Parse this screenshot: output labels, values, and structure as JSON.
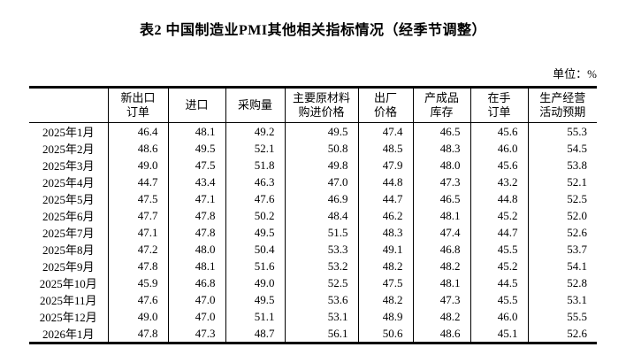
{
  "title": "表2 中国制造业PMI其他相关指标情况（经季节调整）",
  "unit": "单位：%",
  "table": {
    "headers": [
      "",
      "新出口\n订单",
      "进口",
      "采购量",
      "主要原材料\n购进价格",
      "出厂\n价格",
      "产成品\n库存",
      "在手\n订单",
      "生产经营\n活动预期"
    ],
    "rows": [
      {
        "month": "2025年1月",
        "values": [
          "46.4",
          "48.1",
          "49.2",
          "49.5",
          "47.4",
          "46.5",
          "45.6",
          "55.3"
        ]
      },
      {
        "month": "2025年2月",
        "values": [
          "48.6",
          "49.5",
          "52.1",
          "50.8",
          "48.5",
          "48.3",
          "46.0",
          "54.5"
        ]
      },
      {
        "month": "2025年3月",
        "values": [
          "49.0",
          "47.5",
          "51.8",
          "49.8",
          "47.9",
          "48.0",
          "45.6",
          "53.8"
        ]
      },
      {
        "month": "2025年4月",
        "values": [
          "44.7",
          "43.4",
          "46.3",
          "47.0",
          "44.8",
          "47.3",
          "43.2",
          "52.1"
        ]
      },
      {
        "month": "2025年5月",
        "values": [
          "47.5",
          "47.1",
          "47.6",
          "46.9",
          "44.7",
          "46.5",
          "44.8",
          "52.5"
        ]
      },
      {
        "month": "2025年6月",
        "values": [
          "47.7",
          "47.8",
          "50.2",
          "48.4",
          "46.2",
          "48.1",
          "45.2",
          "52.0"
        ]
      },
      {
        "month": "2025年7月",
        "values": [
          "47.1",
          "47.8",
          "49.5",
          "51.5",
          "48.3",
          "47.4",
          "44.7",
          "52.6"
        ]
      },
      {
        "month": "2025年8月",
        "values": [
          "47.2",
          "48.0",
          "50.4",
          "53.3",
          "49.1",
          "46.8",
          "45.5",
          "53.7"
        ]
      },
      {
        "month": "2025年9月",
        "values": [
          "47.8",
          "48.1",
          "51.6",
          "53.2",
          "48.2",
          "48.2",
          "45.2",
          "54.1"
        ]
      },
      {
        "month": "2025年10月",
        "values": [
          "45.9",
          "46.8",
          "49.0",
          "52.5",
          "47.5",
          "48.1",
          "44.5",
          "52.8"
        ]
      },
      {
        "month": "2025年11月",
        "values": [
          "47.6",
          "47.0",
          "49.5",
          "53.6",
          "48.2",
          "47.3",
          "45.5",
          "53.1"
        ]
      },
      {
        "month": "2025年12月",
        "values": [
          "49.0",
          "47.0",
          "51.1",
          "53.1",
          "48.9",
          "48.2",
          "46.0",
          "55.5"
        ]
      },
      {
        "month": "2026年1月",
        "values": [
          "47.8",
          "47.3",
          "48.7",
          "56.1",
          "50.6",
          "48.6",
          "45.1",
          "52.6"
        ]
      }
    ]
  },
  "chart_data": {
    "type": "table",
    "title": "表2 中国制造业PMI其他相关指标情况（经季节调整）",
    "unit": "%",
    "columns": [
      "新出口订单",
      "进口",
      "采购量",
      "主要原材料购进价格",
      "出厂价格",
      "产成品库存",
      "在手订单",
      "生产经营活动预期"
    ],
    "categories": [
      "2025年1月",
      "2025年2月",
      "2025年3月",
      "2025年4月",
      "2025年5月",
      "2025年6月",
      "2025年7月",
      "2025年8月",
      "2025年9月",
      "2025年10月",
      "2025年11月",
      "2025年12月",
      "2026年1月"
    ],
    "series": [
      {
        "name": "新出口订单",
        "values": [
          46.4,
          48.6,
          49.0,
          44.7,
          47.5,
          47.7,
          47.1,
          47.2,
          47.8,
          45.9,
          47.6,
          49.0,
          47.8
        ]
      },
      {
        "name": "进口",
        "values": [
          48.1,
          49.5,
          47.5,
          43.4,
          47.1,
          47.8,
          47.8,
          48.0,
          48.1,
          46.8,
          47.0,
          47.0,
          47.3
        ]
      },
      {
        "name": "采购量",
        "values": [
          49.2,
          52.1,
          51.8,
          46.3,
          47.6,
          50.2,
          49.5,
          50.4,
          51.6,
          49.0,
          49.5,
          51.1,
          48.7
        ]
      },
      {
        "name": "主要原材料购进价格",
        "values": [
          49.5,
          50.8,
          49.8,
          47.0,
          46.9,
          48.4,
          51.5,
          53.3,
          53.2,
          52.5,
          53.6,
          53.1,
          56.1
        ]
      },
      {
        "name": "出厂价格",
        "values": [
          47.4,
          48.5,
          47.9,
          44.8,
          44.7,
          46.2,
          48.3,
          49.1,
          48.2,
          47.5,
          48.2,
          48.9,
          50.6
        ]
      },
      {
        "name": "产成品库存",
        "values": [
          46.5,
          48.3,
          48.0,
          47.3,
          46.5,
          48.1,
          47.4,
          46.8,
          48.2,
          48.1,
          47.3,
          48.2,
          48.6
        ]
      },
      {
        "name": "在手订单",
        "values": [
          45.6,
          46.0,
          45.6,
          43.2,
          44.8,
          45.2,
          44.7,
          45.5,
          45.2,
          44.5,
          45.5,
          46.0,
          45.1
        ]
      },
      {
        "name": "生产经营活动预期",
        "values": [
          55.3,
          54.5,
          53.8,
          52.1,
          52.5,
          52.0,
          52.6,
          53.7,
          54.1,
          52.8,
          53.1,
          55.5,
          52.6
        ]
      }
    ]
  }
}
